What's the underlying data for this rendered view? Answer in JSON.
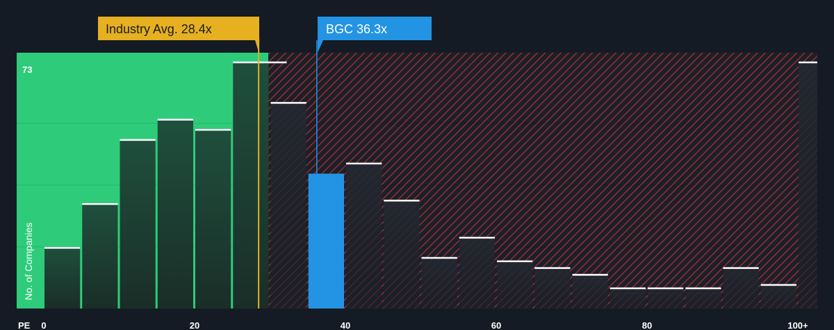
{
  "chart_data": {
    "type": "bar",
    "title": "",
    "xlabel": "PE",
    "ylabel": "No. of Companies",
    "ylim": [
      0,
      73
    ],
    "x_ticks": [
      {
        "value": 0,
        "label": "0"
      },
      {
        "value": 20,
        "label": "20"
      },
      {
        "value": 40,
        "label": "40"
      },
      {
        "value": 60,
        "label": "60"
      },
      {
        "value": 80,
        "label": "80"
      },
      {
        "value": 100,
        "label": "100+"
      }
    ],
    "max_label": "73",
    "bin_width": 5,
    "bins": [
      {
        "start": 0,
        "value": 18
      },
      {
        "start": 5,
        "value": 31
      },
      {
        "start": 10,
        "value": 50
      },
      {
        "start": 15,
        "value": 56
      },
      {
        "start": 20,
        "value": 53
      },
      {
        "start": 25,
        "value": 73
      },
      {
        "start": 30,
        "value": 61
      },
      {
        "start": 35,
        "value": 40
      },
      {
        "start": 40,
        "value": 43
      },
      {
        "start": 45,
        "value": 32
      },
      {
        "start": 50,
        "value": 15
      },
      {
        "start": 55,
        "value": 21
      },
      {
        "start": 60,
        "value": 14
      },
      {
        "start": 65,
        "value": 12
      },
      {
        "start": 70,
        "value": 10
      },
      {
        "start": 75,
        "value": 6
      },
      {
        "start": 80,
        "value": 6
      },
      {
        "start": 85,
        "value": 6
      },
      {
        "start": 90,
        "value": 12
      },
      {
        "start": 95,
        "value": 7
      },
      {
        "start": 100,
        "value": 73
      }
    ],
    "industry_avg": {
      "value": 28.4,
      "label": "Industry Avg. 28.4x"
    },
    "company": {
      "value": 36.3,
      "label": "BGC 36.3x",
      "bin_start": 35
    },
    "colors": {
      "background": "#151b24",
      "fair_zone": "#2ecc7a",
      "bar_green": "#1f4a38",
      "bar_dark": "#1d232c",
      "hatch_red": "#b8333f",
      "company_bar": "#2394e3",
      "industry_callout": "#e6b020",
      "bar_cap": "#ffffff"
    }
  }
}
